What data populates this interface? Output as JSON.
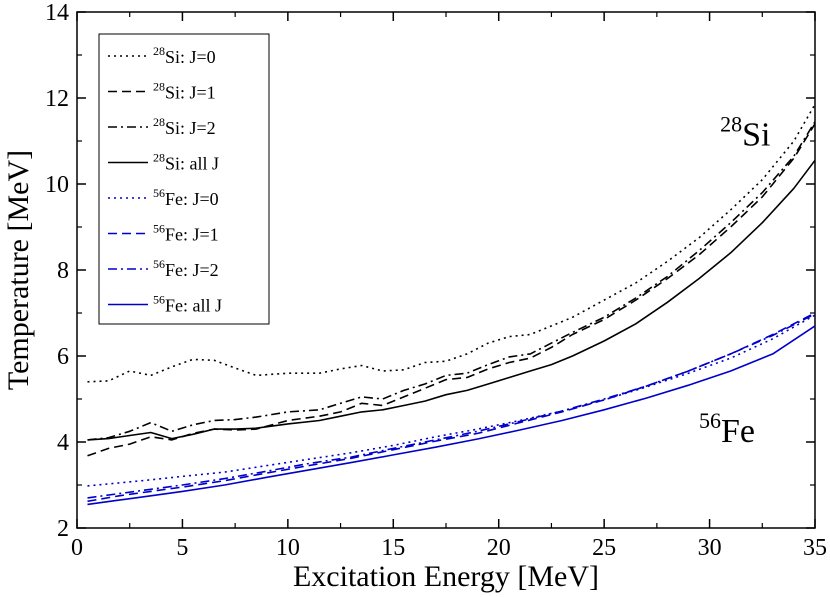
{
  "chart_data": {
    "type": "line",
    "title": "",
    "xlabel": "Excitation Energy [MeV]",
    "ylabel": "Temperature [MeV]",
    "xlim": [
      0,
      35
    ],
    "ylim": [
      2,
      14
    ],
    "xticks": [
      0,
      5,
      10,
      15,
      20,
      25,
      30,
      35
    ],
    "yticks": [
      2,
      4,
      6,
      8,
      10,
      12,
      14
    ],
    "grid": false,
    "legend_position": "top-left",
    "annotations": [
      {
        "mass": "28",
        "element": "Si",
        "x": 30.5,
        "y": 10.9
      },
      {
        "mass": "56",
        "element": "Fe",
        "x": 29.5,
        "y": 4.0
      }
    ],
    "series": [
      {
        "name": "Si: J=0",
        "mass": "28",
        "color": "#000000",
        "dash": "dotted",
        "x": [
          0.5,
          1.5,
          2.5,
          3.5,
          4.5,
          5.5,
          6.5,
          7.5,
          8.5,
          10,
          11.5,
          12.5,
          13.5,
          14.5,
          15.5,
          16.5,
          17.5,
          18.5,
          19.5,
          20.5,
          21.5,
          22.5,
          23.5,
          25,
          26.5,
          28,
          29.5,
          31,
          32.5,
          34,
          35
        ],
        "y": [
          5.4,
          5.42,
          5.65,
          5.55,
          5.75,
          5.92,
          5.9,
          5.72,
          5.55,
          5.6,
          5.6,
          5.7,
          5.78,
          5.65,
          5.68,
          5.85,
          5.88,
          6.05,
          6.3,
          6.45,
          6.5,
          6.7,
          6.9,
          7.3,
          7.7,
          8.2,
          8.75,
          9.4,
          10.1,
          11.0,
          11.85
        ]
      },
      {
        "name": "Si: J=1",
        "mass": "28",
        "color": "#000000",
        "dash": "dashed",
        "x": [
          0.5,
          1.5,
          2.5,
          3.5,
          4.5,
          5.5,
          6.5,
          7.5,
          8.5,
          10,
          11.5,
          12.5,
          13.5,
          14.5,
          15.5,
          16.5,
          17.5,
          18.5,
          19.5,
          20.5,
          21.5,
          22.5,
          23.5,
          25,
          26.5,
          28,
          29.5,
          31,
          32.5,
          34,
          35
        ],
        "y": [
          3.68,
          3.85,
          3.95,
          4.12,
          4.05,
          4.2,
          4.3,
          4.28,
          4.3,
          4.5,
          4.6,
          4.7,
          4.9,
          4.85,
          5.05,
          5.25,
          5.45,
          5.5,
          5.7,
          5.85,
          5.95,
          6.2,
          6.5,
          6.85,
          7.3,
          7.8,
          8.35,
          9.0,
          9.7,
          10.6,
          11.4
        ]
      },
      {
        "name": "Si: J=2",
        "mass": "28",
        "color": "#000000",
        "dash": "dashdot",
        "x": [
          0.5,
          1.5,
          2.5,
          3.5,
          4.5,
          5.5,
          6.5,
          7.5,
          8.5,
          10,
          11.5,
          12.5,
          13.5,
          14.5,
          15.5,
          16.5,
          17.5,
          18.5,
          19.5,
          20.5,
          21.5,
          22.5,
          23.5,
          25,
          26.5,
          28,
          29.5,
          31,
          32.5,
          34,
          35
        ],
        "y": [
          4.05,
          4.1,
          4.25,
          4.45,
          4.25,
          4.4,
          4.5,
          4.52,
          4.58,
          4.7,
          4.75,
          4.9,
          5.05,
          5.0,
          5.2,
          5.35,
          5.55,
          5.6,
          5.8,
          5.98,
          6.05,
          6.3,
          6.55,
          6.9,
          7.35,
          7.85,
          8.45,
          9.1,
          9.8,
          10.65,
          11.45
        ]
      },
      {
        "name": "Si: all J",
        "mass": "28",
        "color": "#000000",
        "dash": "solid",
        "x": [
          0.5,
          1.5,
          2.5,
          3.5,
          4.5,
          5.5,
          6.5,
          7.5,
          8.5,
          10,
          11.5,
          12.5,
          13.5,
          14.5,
          15.5,
          16.5,
          17.5,
          18.5,
          19.5,
          20.5,
          21.5,
          22.5,
          23.5,
          25,
          26.5,
          28,
          29.5,
          31,
          32.5,
          34,
          35
        ],
        "y": [
          4.05,
          4.08,
          4.15,
          4.22,
          4.08,
          4.18,
          4.3,
          4.3,
          4.32,
          4.42,
          4.5,
          4.6,
          4.7,
          4.75,
          4.85,
          4.95,
          5.1,
          5.2,
          5.35,
          5.5,
          5.65,
          5.8,
          6.0,
          6.35,
          6.75,
          7.25,
          7.8,
          8.4,
          9.1,
          9.9,
          10.55
        ]
      },
      {
        "name": "Fe: J=0",
        "mass": "56",
        "color": "#0000cc",
        "dash": "dotted",
        "x": [
          0.5,
          2,
          3.5,
          5,
          7,
          9,
          11,
          13,
          15,
          17,
          19,
          21,
          23,
          25,
          27,
          29,
          31,
          33,
          35
        ],
        "y": [
          2.98,
          3.05,
          3.12,
          3.2,
          3.3,
          3.45,
          3.6,
          3.75,
          3.92,
          4.12,
          4.3,
          4.5,
          4.72,
          4.98,
          5.28,
          5.6,
          5.95,
          6.4,
          6.95
        ]
      },
      {
        "name": "Fe: J=1",
        "mass": "56",
        "color": "#0000cc",
        "dash": "dashed",
        "x": [
          0.5,
          2,
          3.5,
          5,
          7,
          9,
          11,
          13,
          15,
          17,
          19,
          21,
          23,
          25,
          27,
          29,
          31,
          33,
          35
        ],
        "y": [
          2.62,
          2.75,
          2.85,
          2.95,
          3.1,
          3.28,
          3.45,
          3.62,
          3.82,
          4.02,
          4.2,
          4.45,
          4.7,
          4.98,
          5.3,
          5.65,
          6.05,
          6.5,
          7.0
        ]
      },
      {
        "name": "Fe: J=2",
        "mass": "56",
        "color": "#0000cc",
        "dash": "dashdot",
        "x": [
          0.5,
          2,
          3.5,
          5,
          7,
          9,
          11,
          13,
          15,
          17,
          19,
          21,
          23,
          25,
          27,
          29,
          31,
          33,
          35
        ],
        "y": [
          2.7,
          2.8,
          2.9,
          3.0,
          3.15,
          3.32,
          3.5,
          3.65,
          3.85,
          4.05,
          4.25,
          4.48,
          4.72,
          5.0,
          5.3,
          5.65,
          6.05,
          6.48,
          6.98
        ]
      },
      {
        "name": "Fe: all J",
        "mass": "56",
        "color": "#0000cc",
        "dash": "solid",
        "x": [
          0.5,
          2,
          3.5,
          5,
          7,
          9,
          11,
          13,
          15,
          17,
          19,
          21,
          23,
          25,
          27,
          29,
          31,
          33,
          35
        ],
        "y": [
          2.55,
          2.65,
          2.75,
          2.85,
          3.0,
          3.18,
          3.35,
          3.52,
          3.7,
          3.88,
          4.07,
          4.28,
          4.5,
          4.75,
          5.02,
          5.32,
          5.65,
          6.05,
          6.7
        ]
      }
    ]
  }
}
